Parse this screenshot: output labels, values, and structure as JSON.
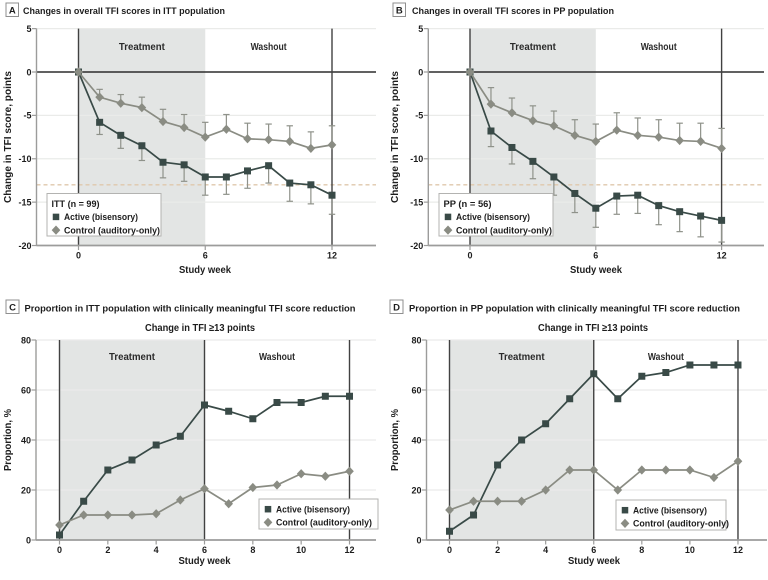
{
  "figure": {
    "colors": {
      "background": "#ffffff",
      "active": "#394a47",
      "control": "#8a8c83",
      "errorbar": "#8f928a",
      "shading": "#e3e5e4",
      "grid": "#eaebe9",
      "zero_line": "#2d2d2d",
      "frame_line": "#414141",
      "axis": "#9c9c9b",
      "threshold": "#dfc8ac",
      "text": "#1d1d1d",
      "legend_border": "#b3b3b1"
    }
  },
  "chart_data": [
    {
      "id": "A",
      "type": "line",
      "panel_label": "A",
      "title": "Changes in overall TFI scores in ITT population",
      "subtitle": "",
      "xlabel": "Study week",
      "ylabel": "Change in TFI score, points",
      "x": [
        0,
        1,
        2,
        3,
        4,
        5,
        6,
        7,
        8,
        9,
        10,
        11,
        12
      ],
      "xticks": [
        0,
        6,
        12
      ],
      "yticks": [
        5,
        0,
        -5,
        -10,
        -15,
        -20
      ],
      "ylim": [
        -20,
        5
      ],
      "xlim": [
        -2,
        14.1
      ],
      "grid": true,
      "regions": {
        "treatment": [
          0,
          6
        ],
        "washout": [
          6,
          12
        ]
      },
      "region_labels": [
        "Treatment",
        "Washout"
      ],
      "threshold_y": -13,
      "legend": {
        "title": "ITT (n = 99)",
        "position": "lower left"
      },
      "series": [
        {
          "name": "Active (bisensory)",
          "marker": "square",
          "color_key": "active",
          "values": [
            0,
            -5.8,
            -7.3,
            -8.5,
            -10.4,
            -10.7,
            -12.1,
            -12.1,
            -11.4,
            -10.8,
            -12.8,
            -13.0,
            -14.2
          ],
          "err": [
            0,
            1.4,
            1.5,
            1.7,
            1.8,
            1.9,
            2.1,
            2.0,
            2.0,
            2.0,
            2.1,
            2.2,
            2.2
          ],
          "err_dir": "down"
        },
        {
          "name": "Control (auditory-only)",
          "marker": "diamond",
          "color_key": "control",
          "values": [
            0,
            -2.9,
            -3.6,
            -4.1,
            -5.7,
            -6.4,
            -7.5,
            -6.6,
            -7.7,
            -7.8,
            -8.0,
            -8.8,
            -8.4
          ],
          "err": [
            0,
            0.9,
            1.0,
            1.2,
            1.4,
            1.5,
            1.7,
            1.7,
            1.8,
            1.8,
            1.8,
            1.9,
            2.2
          ],
          "err_dir": "up"
        }
      ]
    },
    {
      "id": "B",
      "type": "line",
      "panel_label": "B",
      "title": "Changes in overall TFI scores in PP population",
      "subtitle": "",
      "xlabel": "Study week",
      "ylabel": "Change in TFI score, points",
      "x": [
        0,
        1,
        2,
        3,
        4,
        5,
        6,
        7,
        8,
        9,
        10,
        11,
        12
      ],
      "xticks": [
        0,
        6,
        12
      ],
      "yticks": [
        5,
        0,
        -5,
        -10,
        -15,
        -20
      ],
      "ylim": [
        -20,
        5
      ],
      "xlim": [
        -2,
        14.1
      ],
      "grid": true,
      "regions": {
        "treatment": [
          0,
          6
        ],
        "washout": [
          6,
          12
        ]
      },
      "region_labels": [
        "Treatment",
        "Washout"
      ],
      "threshold_y": -13,
      "legend": {
        "title": "PP (n = 56)",
        "position": "lower left"
      },
      "series": [
        {
          "name": "Active (bisensory)",
          "marker": "square",
          "color_key": "active",
          "values": [
            0,
            -6.8,
            -8.7,
            -10.3,
            -12.1,
            -14.0,
            -15.7,
            -14.3,
            -14.2,
            -15.4,
            -16.1,
            -16.6,
            -17.1
          ],
          "err": [
            0,
            1.8,
            1.9,
            2.0,
            2.1,
            2.2,
            2.2,
            2.1,
            2.1,
            2.2,
            2.3,
            2.4,
            2.5
          ],
          "err_dir": "down"
        },
        {
          "name": "Control (auditory-only)",
          "marker": "diamond",
          "color_key": "control",
          "values": [
            0,
            -3.7,
            -4.7,
            -5.6,
            -6.2,
            -7.3,
            -8.0,
            -6.7,
            -7.3,
            -7.5,
            -7.9,
            -8.0,
            -8.8
          ],
          "err": [
            0,
            1.9,
            1.7,
            1.7,
            1.7,
            1.8,
            2.0,
            2.0,
            2.0,
            2.0,
            2.0,
            2.1,
            2.3
          ],
          "err_dir": "up"
        }
      ]
    },
    {
      "id": "C",
      "type": "line",
      "panel_label": "C",
      "title": "Proportion in ITT population with clinically meaningful TFI score reduction",
      "subtitle": "Change in TFI ≥13 points",
      "xlabel": "Study week",
      "ylabel": "Proportion, %",
      "x": [
        0,
        1,
        2,
        3,
        4,
        5,
        6,
        7,
        8,
        9,
        10,
        11,
        12
      ],
      "xticks": [
        0,
        2,
        4,
        6,
        8,
        10,
        12
      ],
      "yticks": [
        80,
        60,
        40,
        20,
        0
      ],
      "ylim": [
        0,
        80
      ],
      "xlim": [
        -1,
        13.1
      ],
      "grid": true,
      "regions": {
        "treatment": [
          0,
          6
        ],
        "washout": [
          6,
          12
        ]
      },
      "region_labels": [
        "Treatment",
        "Washout"
      ],
      "threshold_y": null,
      "legend": {
        "title": "",
        "position": "lower right"
      },
      "series": [
        {
          "name": "Active (bisensory)",
          "marker": "square",
          "color_key": "active",
          "values": [
            2,
            15.5,
            28,
            32,
            38,
            41.5,
            54,
            51.5,
            48.5,
            55,
            55,
            57.5,
            57.5
          ],
          "err": [],
          "err_dir": "none"
        },
        {
          "name": "Control (auditory-only)",
          "marker": "diamond",
          "color_key": "control",
          "values": [
            6,
            10,
            10,
            10,
            10.5,
            16,
            20.5,
            14.5,
            21,
            22,
            26.5,
            25.5,
            27.5
          ],
          "err": [],
          "err_dir": "none"
        }
      ]
    },
    {
      "id": "D",
      "type": "line",
      "panel_label": "D",
      "title": "Proportion in PP population with clinically meaningful TFI score reduction",
      "subtitle": "Change in TFI ≥13 points",
      "xlabel": "Study week",
      "ylabel": "Proportion, %",
      "x": [
        0,
        1,
        2,
        3,
        4,
        5,
        6,
        7,
        8,
        9,
        10,
        11,
        12
      ],
      "xticks": [
        0,
        2,
        4,
        6,
        8,
        10,
        12
      ],
      "yticks": [
        80,
        60,
        40,
        20,
        0
      ],
      "ylim": [
        0,
        80
      ],
      "xlim": [
        -1,
        13.3
      ],
      "grid": true,
      "regions": {
        "treatment": [
          0,
          6
        ],
        "washout": [
          6,
          12
        ]
      },
      "region_labels": [
        "Treatment",
        "Washout"
      ],
      "threshold_y": null,
      "legend": {
        "title": "",
        "position": "lower right"
      },
      "series": [
        {
          "name": "Active (bisensory)",
          "marker": "square",
          "color_key": "active",
          "values": [
            3.5,
            10,
            30,
            40,
            46.5,
            56.5,
            66.5,
            56.5,
            65.5,
            67,
            70,
            70,
            70
          ],
          "err": [],
          "err_dir": "none"
        },
        {
          "name": "Control (auditory-only)",
          "marker": "diamond",
          "color_key": "control",
          "values": [
            12,
            15.5,
            15.5,
            15.5,
            20,
            28,
            28,
            20,
            28,
            28,
            28,
            25,
            31.5
          ],
          "err": [],
          "err_dir": "none"
        }
      ]
    }
  ]
}
